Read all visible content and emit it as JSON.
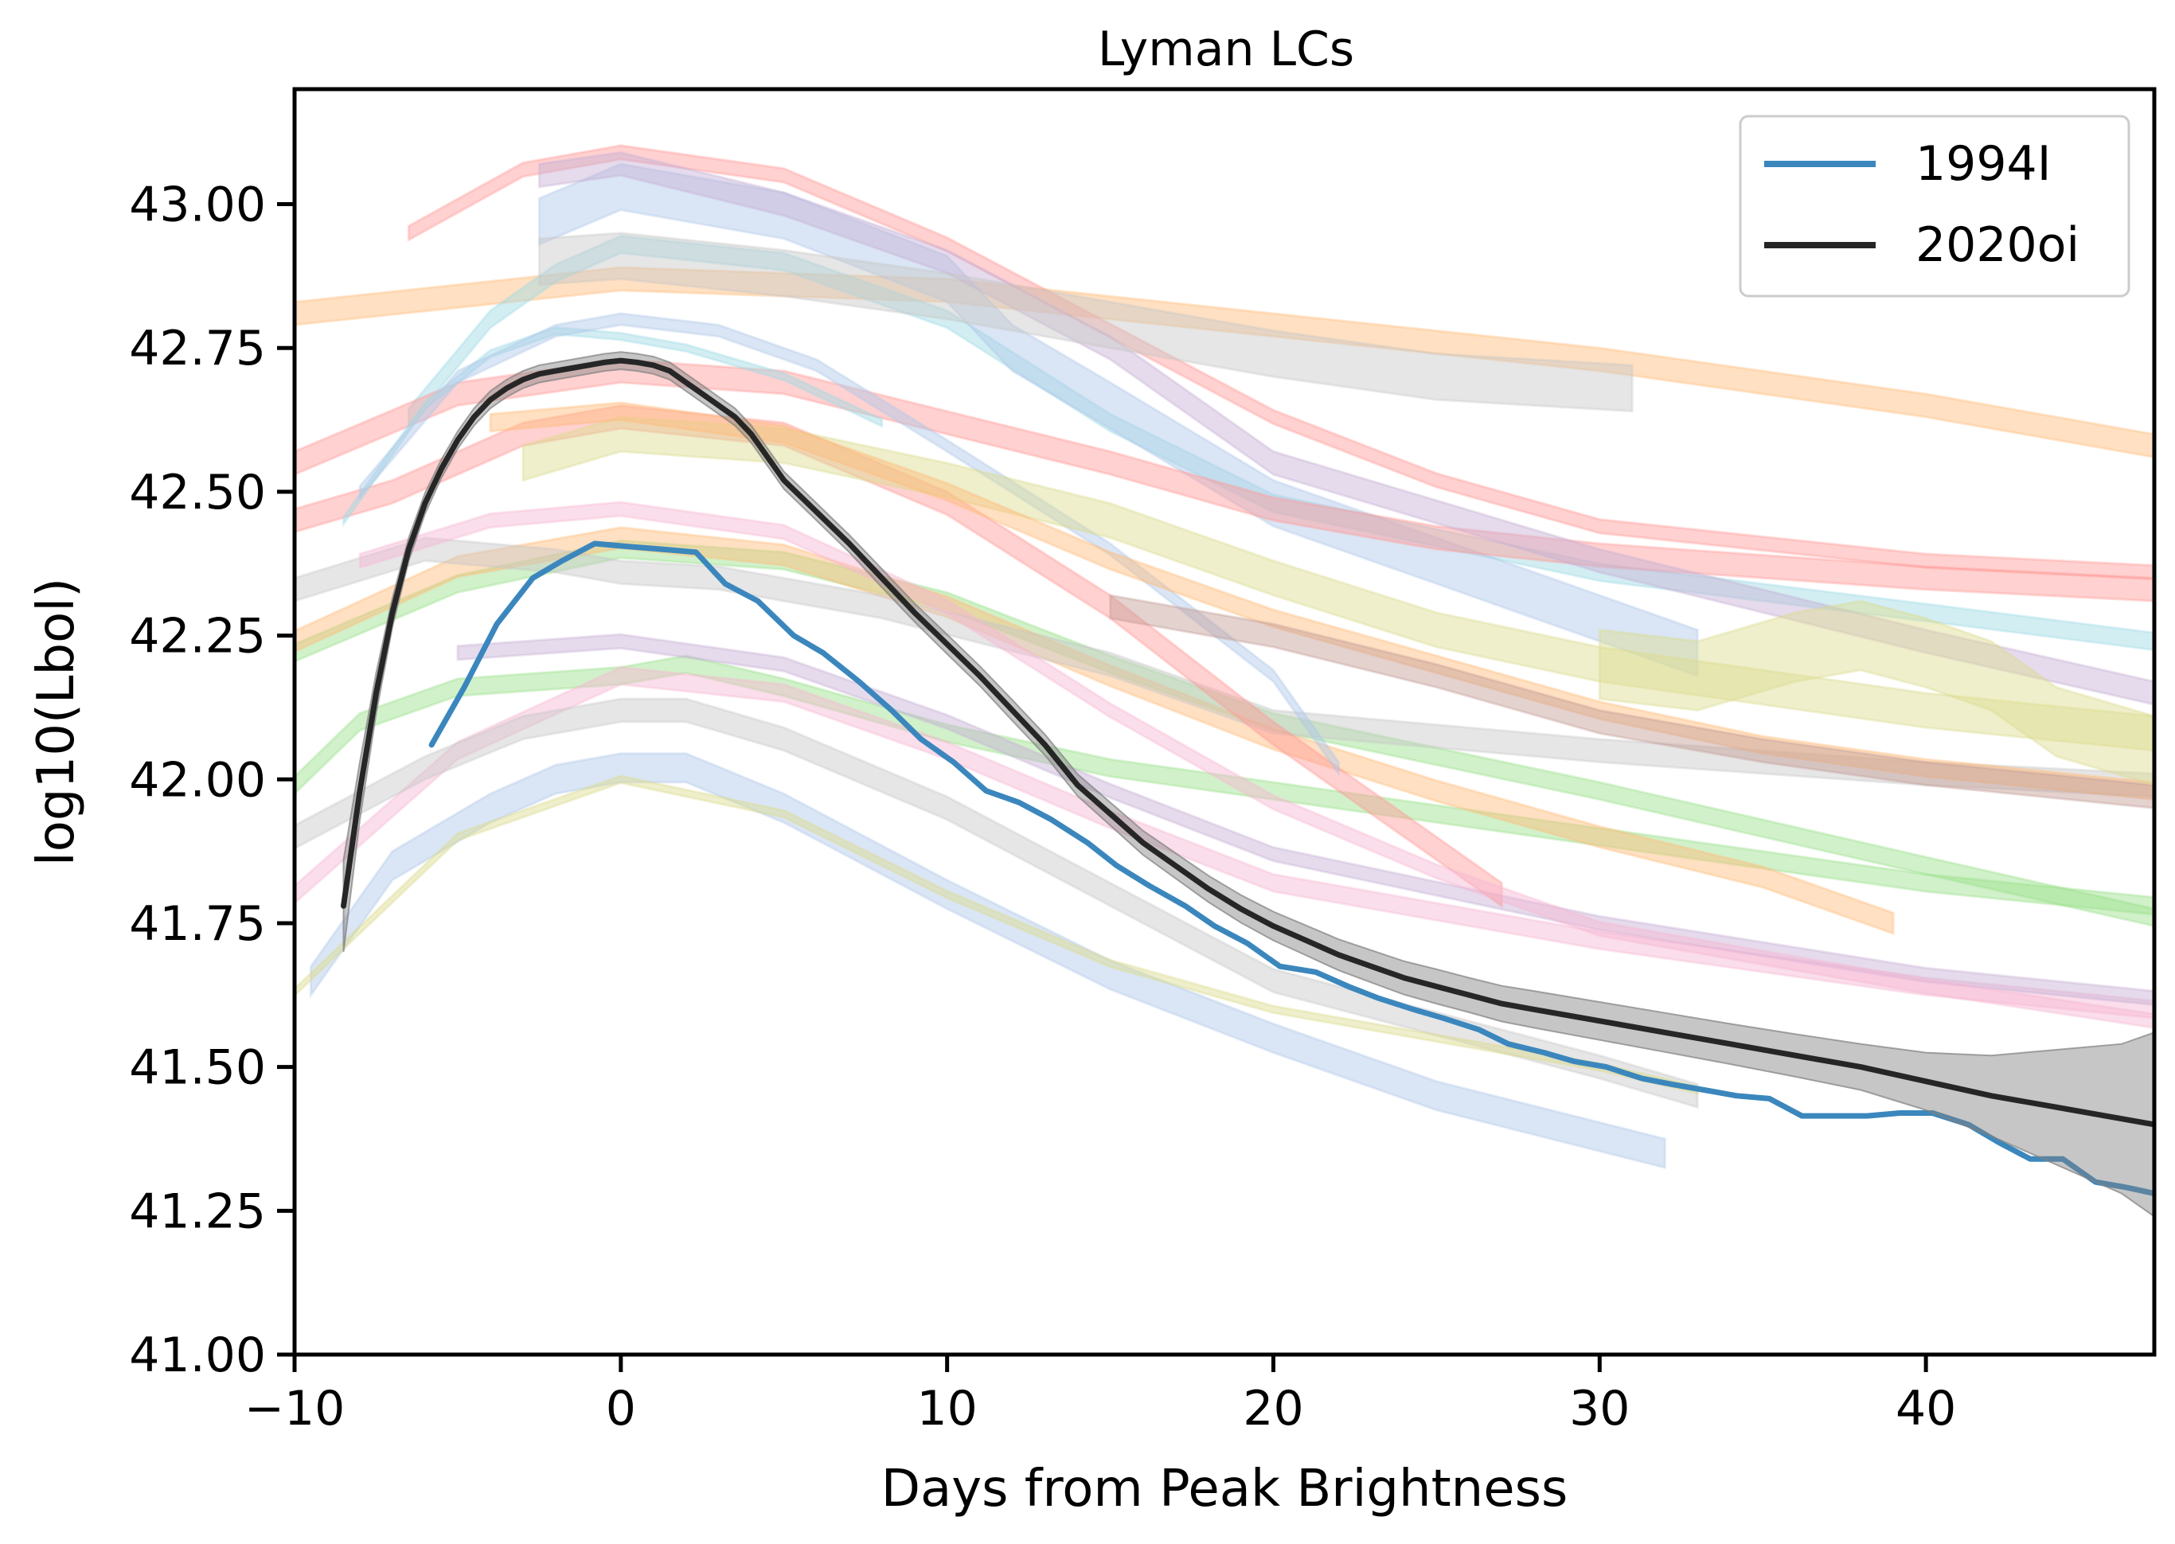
{
  "chart_data": {
    "type": "line",
    "title": "Lyman LCs",
    "xlabel": "Days from Peak Brightness",
    "ylabel": "log10(Lbol)",
    "xlim": [
      -10,
      47
    ],
    "ylim": [
      41.0,
      43.2
    ],
    "xticks": [
      -10,
      0,
      10,
      20,
      30,
      40
    ],
    "xtick_labels": [
      "−10",
      "0",
      "10",
      "20",
      "30",
      "40"
    ],
    "yticks": [
      41.0,
      41.25,
      41.5,
      41.75,
      42.0,
      42.25,
      42.5,
      42.75,
      43.0
    ],
    "ytick_labels": [
      "41.00",
      "41.25",
      "41.50",
      "41.75",
      "42.00",
      "42.25",
      "42.50",
      "42.75",
      "43.00"
    ],
    "grid": false,
    "legend_position": "top-right",
    "series": [
      {
        "name": "1994I",
        "color": "#3b87bd",
        "x": [
          -5.8,
          -4.8,
          -3.8,
          -2.7,
          -1.8,
          -0.8,
          0.2,
          1.3,
          2.3,
          3.2,
          4.2,
          5.3,
          6.2,
          7.3,
          8.3,
          9.2,
          10.2,
          11.2,
          12.2,
          13.2,
          14.3,
          15.2,
          16.2,
          17.3,
          18.2,
          19.2,
          20.2,
          21.3,
          22.3,
          23.2,
          24.3,
          25.2,
          26.3,
          27.2,
          28.3,
          29.2,
          30.2,
          31.3,
          32.2,
          33.2,
          34.2,
          35.2,
          36.2,
          37.3,
          38.2,
          39.2,
          40.2,
          41.3,
          42.2,
          43.2,
          44.2,
          45.2,
          46.2,
          47.0
        ],
        "y": [
          42.06,
          42.16,
          42.27,
          42.35,
          42.38,
          42.41,
          42.405,
          42.4,
          42.395,
          42.34,
          42.31,
          42.25,
          42.22,
          42.17,
          42.12,
          42.07,
          42.03,
          41.98,
          41.96,
          41.93,
          41.89,
          41.85,
          41.815,
          41.78,
          41.745,
          41.715,
          41.675,
          41.665,
          41.64,
          41.62,
          41.6,
          41.585,
          41.565,
          41.54,
          41.525,
          41.51,
          41.5,
          41.48,
          41.47,
          41.46,
          41.45,
          41.445,
          41.415,
          41.415,
          41.415,
          41.42,
          41.42,
          41.4,
          41.37,
          41.34,
          41.34,
          41.3,
          41.29,
          41.28
        ]
      },
      {
        "name": "2020oi",
        "color": "#262626",
        "x": [
          -8.5,
          -8.0,
          -7.5,
          -7.0,
          -6.5,
          -6.0,
          -5.5,
          -5.0,
          -4.5,
          -4.0,
          -3.5,
          -3.0,
          -2.5,
          -2.0,
          -1.5,
          -1.0,
          -0.5,
          0.0,
          0.5,
          1.0,
          1.5,
          2.0,
          2.5,
          3.0,
          3.5,
          4.0,
          4.5,
          5.0,
          6.0,
          7.0,
          8.0,
          9.0,
          10.0,
          11.0,
          12.0,
          13.0,
          14.0,
          15.0,
          16.0,
          17.0,
          18.0,
          19.0,
          20.0,
          21.0,
          22.0,
          23.0,
          24.0,
          25.0,
          26.0,
          27.0,
          28.0,
          30.0,
          32.0,
          34.0,
          36.0,
          38.0,
          40.0,
          42.0,
          44.0,
          46.0,
          47.0
        ],
        "y": [
          41.78,
          41.98,
          42.15,
          42.29,
          42.4,
          42.48,
          42.54,
          42.59,
          42.63,
          42.66,
          42.68,
          42.695,
          42.705,
          42.71,
          42.715,
          42.72,
          42.725,
          42.728,
          42.725,
          42.72,
          42.71,
          42.69,
          42.67,
          42.65,
          42.63,
          42.6,
          42.56,
          42.52,
          42.465,
          42.41,
          42.35,
          42.29,
          42.235,
          42.18,
          42.12,
          42.06,
          41.99,
          41.94,
          41.89,
          41.85,
          41.81,
          41.775,
          41.745,
          41.72,
          41.695,
          41.675,
          41.655,
          41.64,
          41.625,
          41.61,
          41.6,
          41.58,
          41.56,
          41.54,
          41.52,
          41.5,
          41.475,
          41.45,
          41.43,
          41.41,
          41.4
        ],
        "uncertainty": [
          0.08,
          0.05,
          0.035,
          0.025,
          0.02,
          0.018,
          0.016,
          0.015,
          0.015,
          0.015,
          0.015,
          0.015,
          0.015,
          0.015,
          0.015,
          0.015,
          0.015,
          0.015,
          0.015,
          0.015,
          0.015,
          0.015,
          0.015,
          0.015,
          0.015,
          0.015,
          0.015,
          0.015,
          0.015,
          0.015,
          0.016,
          0.016,
          0.017,
          0.017,
          0.018,
          0.018,
          0.019,
          0.02,
          0.021,
          0.022,
          0.023,
          0.024,
          0.025,
          0.026,
          0.027,
          0.028,
          0.029,
          0.03,
          0.03,
          0.031,
          0.032,
          0.033,
          0.034,
          0.035,
          0.037,
          0.04,
          0.05,
          0.07,
          0.1,
          0.13,
          0.16
        ]
      }
    ],
    "background_bands": [
      {
        "color": "#ffbb78",
        "x": [
          -10,
          0,
          10,
          20,
          30,
          40,
          47
        ],
        "y": [
          42.81,
          42.87,
          42.85,
          42.79,
          42.73,
          42.65,
          42.58
        ],
        "half_width": 0.02
      },
      {
        "color": "#9edae5",
        "x": [
          -6.5,
          -4,
          -2,
          0,
          5,
          10,
          15,
          20,
          30,
          40,
          47
        ],
        "y": [
          42.63,
          42.8,
          42.88,
          42.93,
          42.9,
          42.8,
          42.62,
          42.48,
          42.36,
          42.29,
          42.24
        ],
        "half_width": 0.015
      },
      {
        "color": "#aec7e8",
        "x": [
          -2.5,
          0,
          5,
          10,
          12,
          15,
          20,
          25,
          30,
          33
        ],
        "y": [
          42.97,
          43.03,
          42.98,
          42.87,
          42.75,
          42.65,
          42.48,
          42.38,
          42.28,
          42.22
        ],
        "half_width": 0.04
      },
      {
        "color": "#ff9896",
        "x": [
          -10,
          -5,
          0,
          5,
          10,
          15,
          20,
          25,
          30,
          35,
          40,
          47
        ],
        "y": [
          42.55,
          42.67,
          42.71,
          42.69,
          42.62,
          42.55,
          42.47,
          42.42,
          42.39,
          42.37,
          42.35,
          42.33
        ],
        "half_width": 0.02
      },
      {
        "color": "#ff9896",
        "x": [
          -6.5,
          -3,
          0,
          5,
          10,
          15,
          20,
          25,
          30,
          40,
          47
        ],
        "y": [
          42.95,
          43.06,
          43.09,
          43.05,
          42.93,
          42.78,
          42.63,
          42.52,
          42.44,
          42.38,
          42.36
        ],
        "half_width": 0.012
      },
      {
        "color": "#c5b0d5",
        "x": [
          -2.5,
          0,
          5,
          10,
          15,
          20,
          30,
          40,
          47
        ],
        "y": [
          43.05,
          43.07,
          43.0,
          42.9,
          42.75,
          42.55,
          42.38,
          42.24,
          42.15
        ],
        "half_width": 0.02
      },
      {
        "color": "#c7c7c7",
        "x": [
          -2.5,
          0,
          5,
          10,
          15,
          20,
          25,
          31
        ],
        "y": [
          42.9,
          42.91,
          42.88,
          42.84,
          42.79,
          42.74,
          42.7,
          42.68
        ],
        "half_width": 0.04
      },
      {
        "color": "#98df8a",
        "x": [
          -10,
          -8,
          -5,
          0,
          2,
          5,
          10,
          15,
          20,
          30,
          40,
          47
        ],
        "y": [
          41.99,
          42.1,
          42.16,
          42.18,
          42.2,
          42.16,
          42.08,
          42.02,
          41.98,
          41.9,
          41.82,
          41.78
        ],
        "half_width": 0.015
      },
      {
        "color": "#98df8a",
        "x": [
          -10,
          -5,
          0,
          5,
          10,
          15,
          20,
          30,
          40,
          47
        ],
        "y": [
          42.22,
          42.34,
          42.4,
          42.38,
          42.31,
          42.2,
          42.1,
          41.98,
          41.85,
          41.76
        ],
        "half_width": 0.015
      },
      {
        "color": "#ffbb78",
        "x": [
          -10,
          -5,
          0,
          5,
          10,
          15,
          20,
          25,
          30,
          35,
          39
        ],
        "y": [
          42.24,
          42.37,
          42.42,
          42.39,
          42.3,
          42.18,
          42.07,
          41.98,
          41.9,
          41.83,
          41.75
        ],
        "half_width": 0.018
      },
      {
        "color": "#f7b6d2",
        "x": [
          -10,
          -5,
          0,
          5,
          10,
          15,
          20,
          30,
          40,
          47
        ],
        "y": [
          41.8,
          42.05,
          42.18,
          42.15,
          42.05,
          41.93,
          41.82,
          41.72,
          41.64,
          41.6
        ],
        "half_width": 0.015
      },
      {
        "color": "#c5b0d5",
        "x": [
          -5,
          0,
          5,
          10,
          15,
          20,
          30,
          40,
          47
        ],
        "y": [
          42.22,
          42.24,
          42.2,
          42.1,
          41.98,
          41.87,
          41.75,
          41.66,
          41.62
        ],
        "half_width": 0.012
      },
      {
        "color": "#c7c7c7",
        "x": [
          -10,
          -6,
          -3,
          0,
          2,
          5,
          10,
          15,
          20,
          30,
          33
        ],
        "y": [
          41.9,
          42.02,
          42.09,
          42.12,
          42.12,
          42.07,
          41.95,
          41.8,
          41.65,
          41.5,
          41.45
        ],
        "half_width": 0.02
      },
      {
        "color": "#aec7e8",
        "x": [
          -9.5,
          -7,
          -4,
          -2,
          0,
          2,
          5,
          10,
          15,
          20,
          25,
          32
        ],
        "y": [
          41.65,
          41.85,
          41.95,
          42.0,
          42.02,
          42.02,
          41.95,
          41.8,
          41.66,
          41.55,
          41.45,
          41.35
        ],
        "half_width": 0.025
      },
      {
        "color": "#dbdb8d",
        "x": [
          -10,
          -5,
          0,
          5,
          10,
          15,
          20,
          30,
          33
        ],
        "y": [
          41.63,
          41.9,
          42.0,
          41.94,
          41.8,
          41.68,
          41.6,
          41.5,
          41.46
        ],
        "half_width": 0.006
      },
      {
        "color": "#c7c7c7",
        "x": [
          -10,
          -6,
          -2,
          0,
          3,
          8,
          15,
          20,
          30,
          40,
          47
        ],
        "y": [
          42.33,
          42.4,
          42.38,
          42.36,
          42.35,
          42.3,
          42.2,
          42.1,
          42.05,
          42.01,
          41.99
        ],
        "half_width": 0.02
      },
      {
        "color": "#ff9896",
        "x": [
          -10,
          -7,
          -3,
          0,
          5,
          10,
          15,
          20,
          27
        ],
        "y": [
          42.45,
          42.5,
          42.6,
          42.63,
          42.6,
          42.48,
          42.3,
          42.08,
          41.8
        ],
        "half_width": 0.02
      },
      {
        "color": "#9edae5",
        "x": [
          -8.5,
          -6,
          -4,
          -2,
          0,
          2,
          5,
          8
        ],
        "y": [
          42.45,
          42.65,
          42.74,
          42.78,
          42.77,
          42.75,
          42.7,
          42.62
        ],
        "half_width": 0.006
      },
      {
        "color": "#aec7e8",
        "x": [
          -8,
          -5,
          -2,
          0,
          3,
          6,
          10,
          15,
          20,
          22
        ],
        "y": [
          42.5,
          42.7,
          42.78,
          42.8,
          42.78,
          42.72,
          42.58,
          42.4,
          42.18,
          42.02
        ],
        "half_width": 0.01
      },
      {
        "color": "#dbdb8d",
        "x": [
          -3,
          0,
          5,
          10,
          15,
          20,
          25,
          30,
          35,
          40,
          47
        ],
        "y": [
          42.55,
          42.6,
          42.58,
          42.52,
          42.45,
          42.35,
          42.26,
          42.2,
          42.16,
          42.12,
          42.08
        ],
        "half_width": 0.03
      },
      {
        "color": "#ffbb78",
        "x": [
          -4,
          0,
          5,
          10,
          15,
          20,
          25,
          30,
          35,
          40,
          47
        ],
        "y": [
          42.62,
          42.64,
          42.6,
          42.5,
          42.38,
          42.28,
          42.2,
          42.12,
          42.06,
          42.02,
          41.98
        ],
        "half_width": 0.015
      },
      {
        "color": "#c49c94",
        "x": [
          15,
          20,
          25,
          30,
          35,
          40,
          47
        ],
        "y": [
          42.3,
          42.25,
          42.18,
          42.1,
          42.05,
          42.01,
          41.97
        ],
        "half_width": 0.02
      },
      {
        "color": "#dbdb8d",
        "x": [
          30,
          33,
          36,
          38,
          40,
          42,
          44,
          47
        ],
        "y": [
          42.2,
          42.18,
          42.23,
          42.25,
          42.22,
          42.18,
          42.1,
          42.05
        ],
        "half_width": 0.06
      },
      {
        "color": "#f7b6d2",
        "x": [
          -8,
          -4,
          0,
          5,
          10,
          15,
          20,
          25,
          30,
          40,
          47
        ],
        "y": [
          42.38,
          42.45,
          42.47,
          42.43,
          42.3,
          42.12,
          41.96,
          41.84,
          41.74,
          41.64,
          41.58
        ],
        "half_width": 0.012
      }
    ],
    "legend": [
      "1994I",
      "2020oi"
    ]
  }
}
